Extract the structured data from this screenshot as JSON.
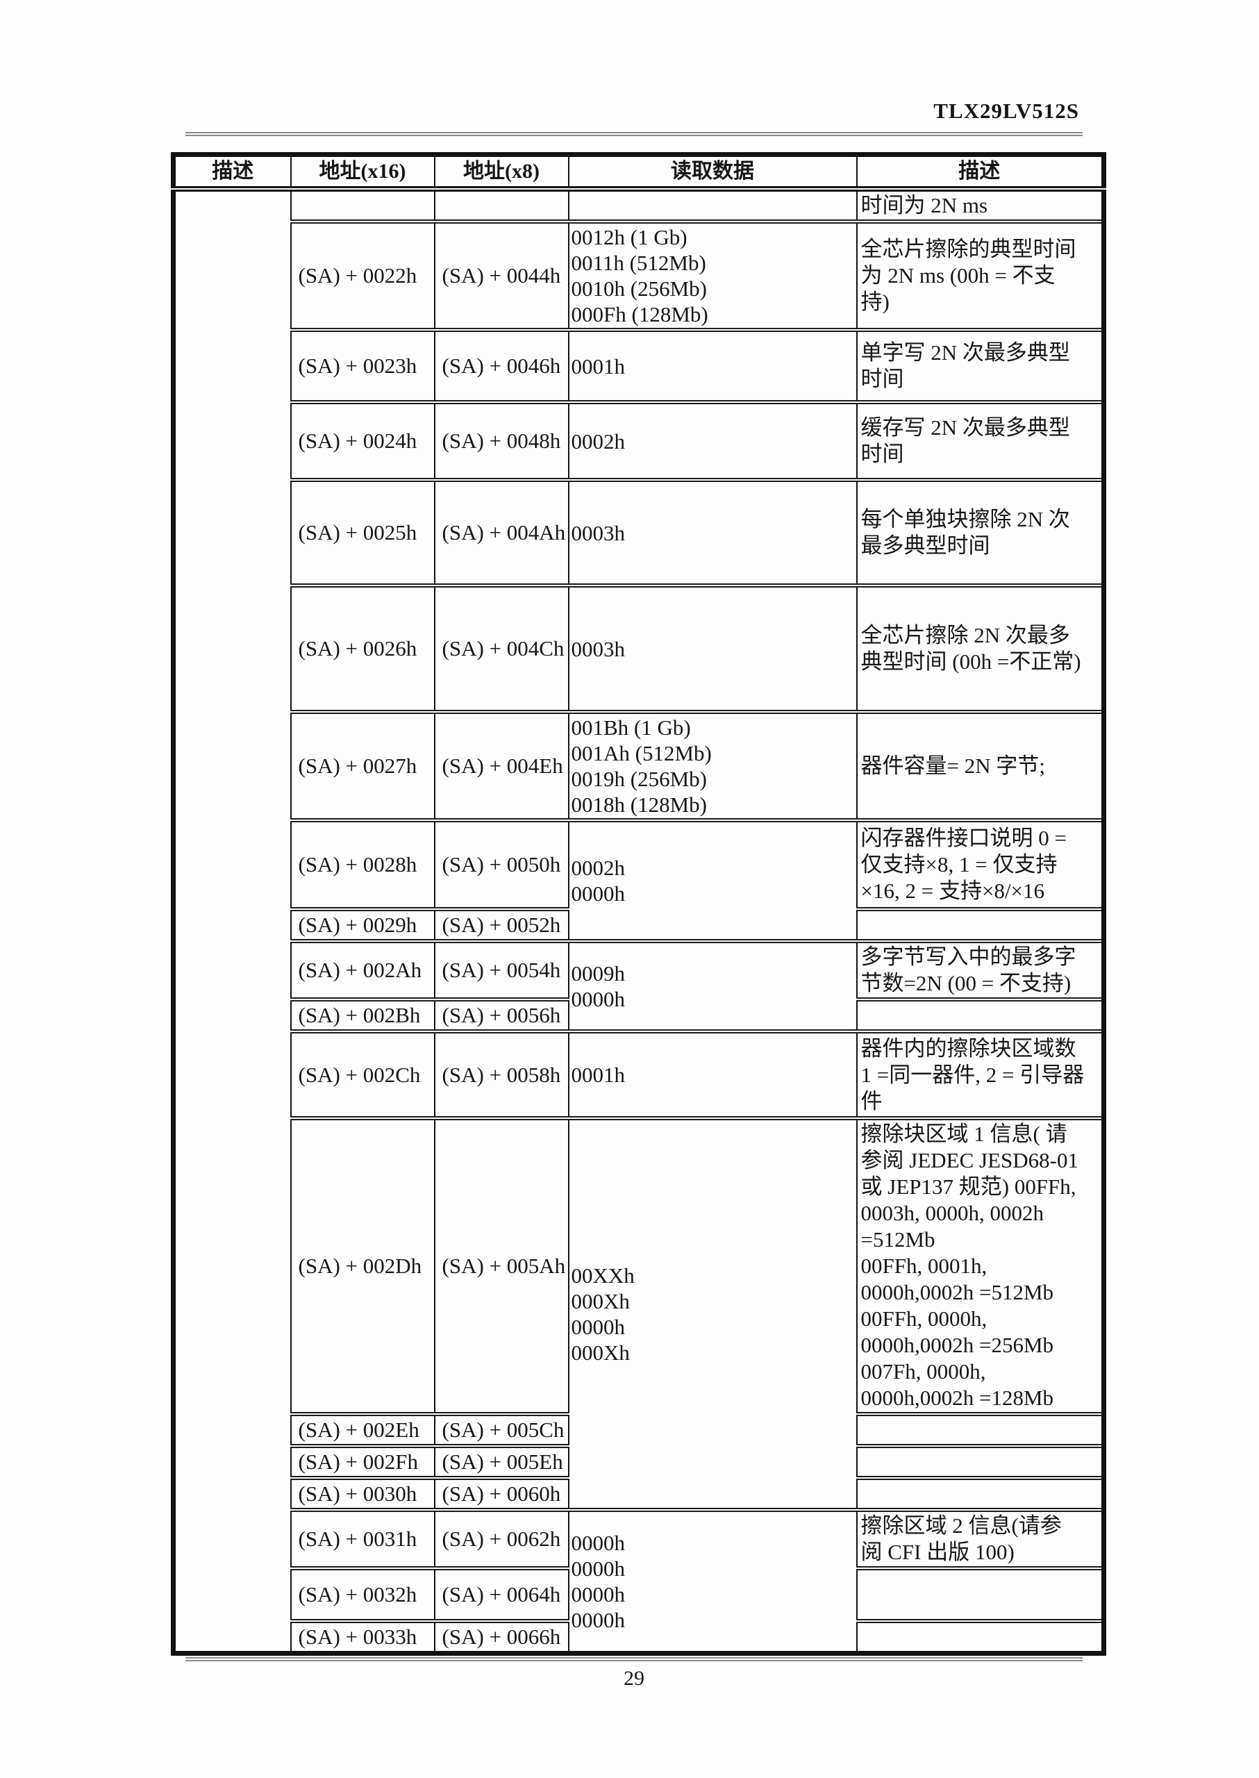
{
  "document": {
    "code": "TLX29LV512S",
    "page_number": "29"
  },
  "table": {
    "headers": [
      "描述",
      "地址(x16)",
      "地址(x8)",
      "读取数据",
      "描述"
    ],
    "left_description": "",
    "rows": [
      {
        "addr16": "",
        "addr8": "",
        "data": "",
        "desc": "时间为 2N ms"
      },
      {
        "addr16": "(SA) + 0022h",
        "addr8": "(SA) + 0044h",
        "data": "0012h (1 Gb)\n0011h (512Mb)\n0010h (256Mb)\n000Fh (128Mb)",
        "desc": "全芯片擦除的典型时间\n为 2N ms (00h = 不支\n持)"
      },
      {
        "addr16": "(SA) + 0023h",
        "addr8": "(SA) + 0046h",
        "data": "0001h",
        "desc": "单字写 2N 次最多典型\n时间"
      },
      {
        "addr16": "(SA) + 0024h",
        "addr8": "(SA) + 0048h",
        "data": "0002h",
        "desc": "缓存写 2N 次最多典型\n时间"
      },
      {
        "addr16": "(SA) + 0025h",
        "addr8": "(SA) + 004Ah",
        "data": "0003h",
        "desc": "每个单独块擦除 2N 次\n最多典型时间"
      },
      {
        "addr16": "(SA) + 0026h",
        "addr8": "(SA) + 004Ch",
        "data": "0003h",
        "desc": "全芯片擦除 2N 次最多\n典型时间 (00h =不正常)"
      },
      {
        "addr16": "(SA) + 0027h",
        "addr8": "(SA) + 004Eh",
        "data": "001Bh (1 Gb)\n001Ah (512Mb)\n0019h (256Mb)\n0018h (128Mb)",
        "desc": "器件容量= 2N 字节;"
      },
      {
        "addr16": "(SA) + 0028h",
        "addr8": "(SA) + 0050h",
        "data": "0002h\n0000h",
        "desc": "闪存器件接口说明 0 =\n仅支持×8, 1 = 仅支持\n×16, 2 = 支持×8/×16"
      },
      {
        "addr16": "(SA) + 0029h",
        "addr8": "(SA) + 0052h",
        "desc": ""
      },
      {
        "addr16": "(SA) + 002Ah",
        "addr8": "(SA) + 0054h",
        "data": "0009h\n0000h",
        "desc": "多字节写入中的最多字\n节数=2N (00 = 不支持)"
      },
      {
        "addr16": "(SA) + 002Bh",
        "addr8": "(SA) + 0056h",
        "desc": ""
      },
      {
        "addr16": "(SA) + 002Ch",
        "addr8": "(SA) + 0058h",
        "data": "0001h",
        "desc": "器件内的擦除块区域数\n1 =同一器件, 2 = 引导器\n件"
      },
      {
        "addr16": "(SA) + 002Dh",
        "addr8": "(SA) + 005Ah",
        "data": "00XXh\n000Xh\n0000h\n000Xh",
        "desc": "擦除块区域 1 信息( 请\n参阅 JEDEC JESD68-01\n或 JEP137 规范) 00FFh,\n0003h, 0000h, 0002h\n=512Mb\n00FFh, 0001h,\n0000h,0002h =512Mb\n00FFh, 0000h,\n0000h,0002h =256Mb\n007Fh, 0000h,\n0000h,0002h =128Mb"
      },
      {
        "addr16": "(SA) + 002Eh",
        "addr8": "(SA) + 005Ch",
        "desc": ""
      },
      {
        "addr16": "(SA) + 002Fh",
        "addr8": "(SA) + 005Eh",
        "desc": ""
      },
      {
        "addr16": "(SA) + 0030h",
        "addr8": "(SA) + 0060h",
        "desc": ""
      },
      {
        "addr16": "(SA) + 0031h",
        "addr8": "(SA) + 0062h",
        "data": "0000h\n0000h\n0000h\n0000h",
        "desc": "擦除区域 2 信息(请参\n阅  CFI 出版  100)"
      },
      {
        "addr16": "(SA) + 0032h",
        "addr8": "(SA) + 0064h",
        "desc": ""
      },
      {
        "addr16": "(SA) + 0033h",
        "addr8": "(SA) + 0066h",
        "desc": ""
      }
    ]
  }
}
